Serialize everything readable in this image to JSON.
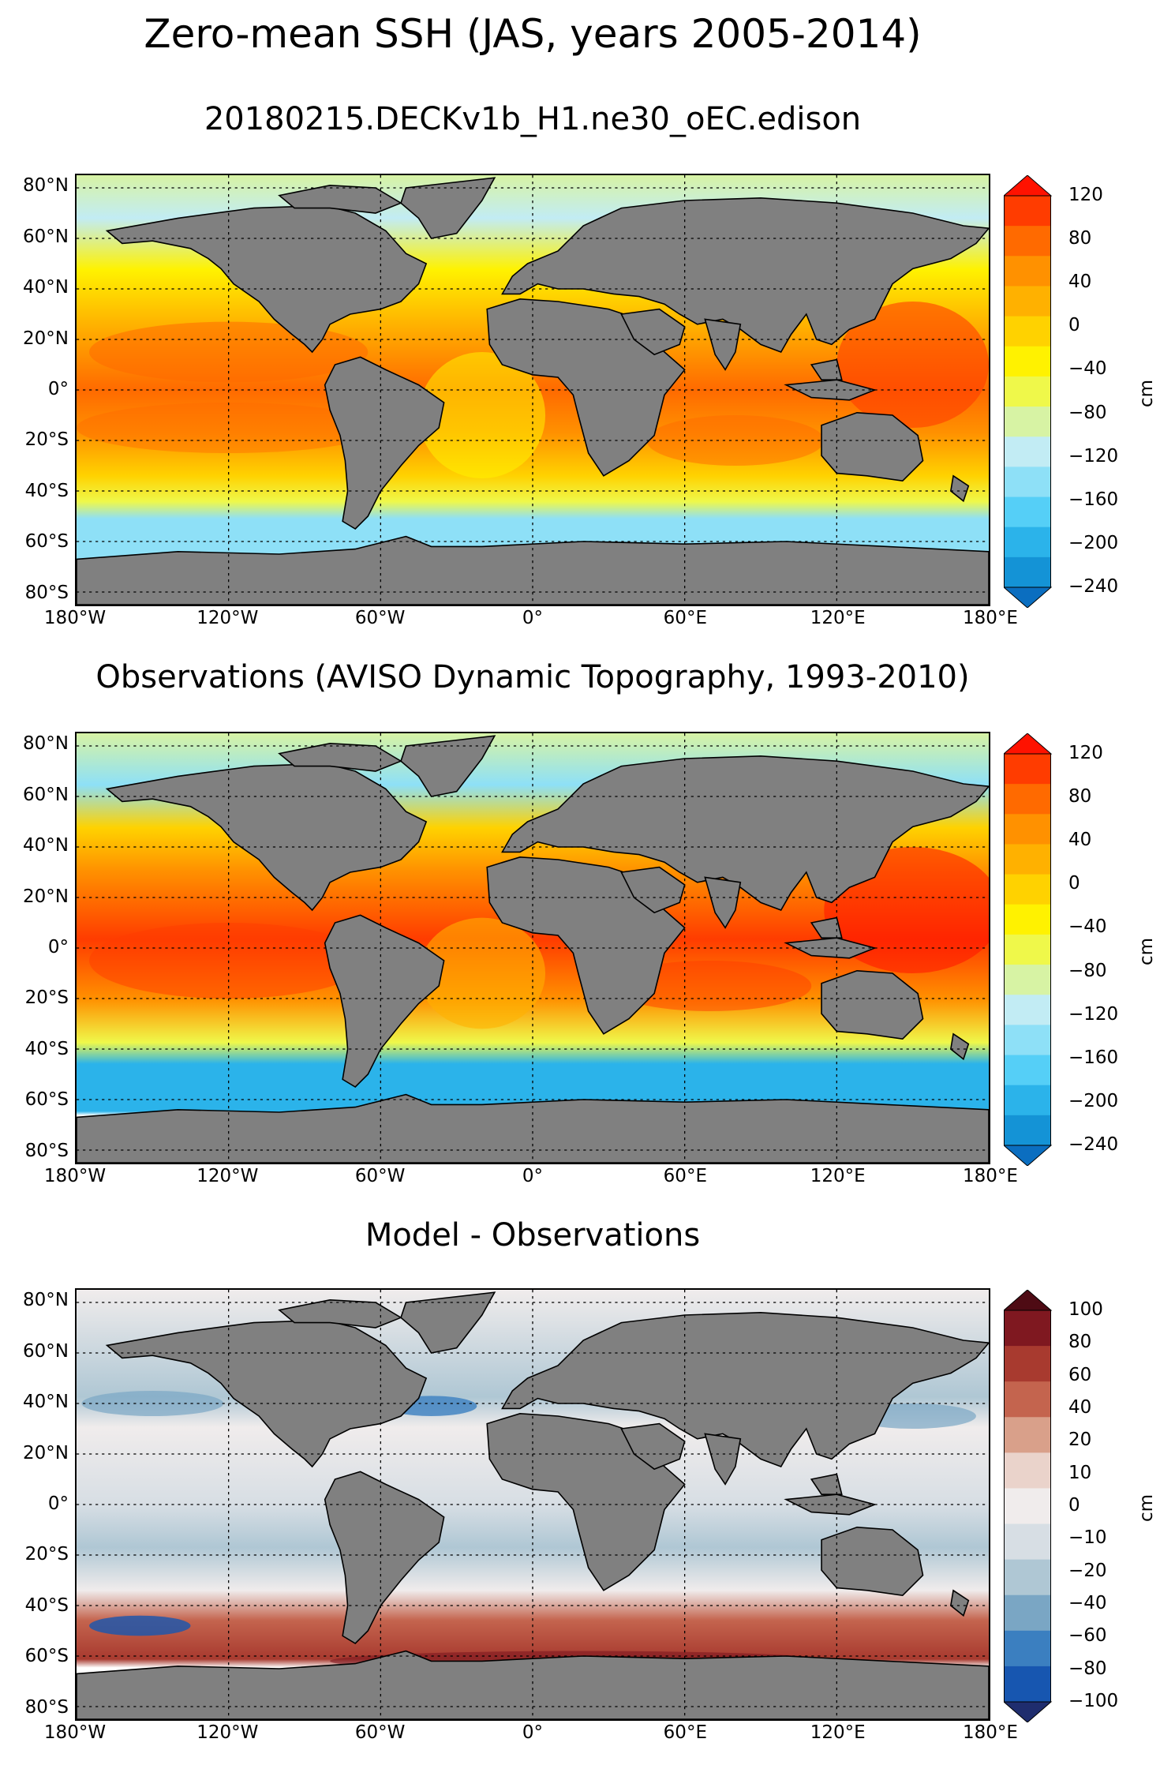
{
  "figure": {
    "suptitle": "Zero-mean SSH (JAS, years 2005-2014)",
    "lat_ticks": [
      "80°N",
      "60°N",
      "40°N",
      "20°N",
      "0°",
      "20°S",
      "40°S",
      "60°S",
      "80°S"
    ],
    "lon_ticks": [
      "180°W",
      "120°W",
      "60°W",
      "0°",
      "60°E",
      "120°E",
      "180°E"
    ]
  },
  "panels": [
    {
      "title": "20180215.DECKv1b_H1.ne30_oEC.edison",
      "colorbar": {
        "unit": "cm",
        "ticks": [
          "120",
          "80",
          "40",
          "0",
          "−40",
          "−80",
          "−120",
          "−160",
          "−200",
          "−240"
        ]
      }
    },
    {
      "title": "Observations (AVISO Dynamic Topography, 1993-2010)",
      "colorbar": {
        "unit": "cm",
        "ticks": [
          "120",
          "80",
          "40",
          "0",
          "−40",
          "−80",
          "−120",
          "−160",
          "−200",
          "−240"
        ]
      }
    },
    {
      "title": "Model - Observations",
      "colorbar": {
        "unit": "cm",
        "ticks": [
          "100",
          "80",
          "60",
          "40",
          "20",
          "10",
          "0",
          "−10",
          "−20",
          "−40",
          "−60",
          "−80",
          "−100"
        ]
      }
    }
  ],
  "colors": {
    "land": "#808080",
    "ssh_scale": [
      "#0b6ec0",
      "#1493d6",
      "#2bb3ea",
      "#55cff7",
      "#8ee0f7",
      "#c2ecf4",
      "#d7f3a4",
      "#eff84a",
      "#fff200",
      "#ffd200",
      "#ffb100",
      "#ff9100",
      "#ff6a00",
      "#ff3c00",
      "#ff1200"
    ],
    "diff_scale": [
      "#1f2d6e",
      "#1756b0",
      "#3b7fc0",
      "#7aa6c4",
      "#afc7d4",
      "#d7dee4",
      "#f0ecec",
      "#ead3cb",
      "#d9a08a",
      "#c4644e",
      "#a83a2f",
      "#7f1820",
      "#4e0b14"
    ]
  }
}
